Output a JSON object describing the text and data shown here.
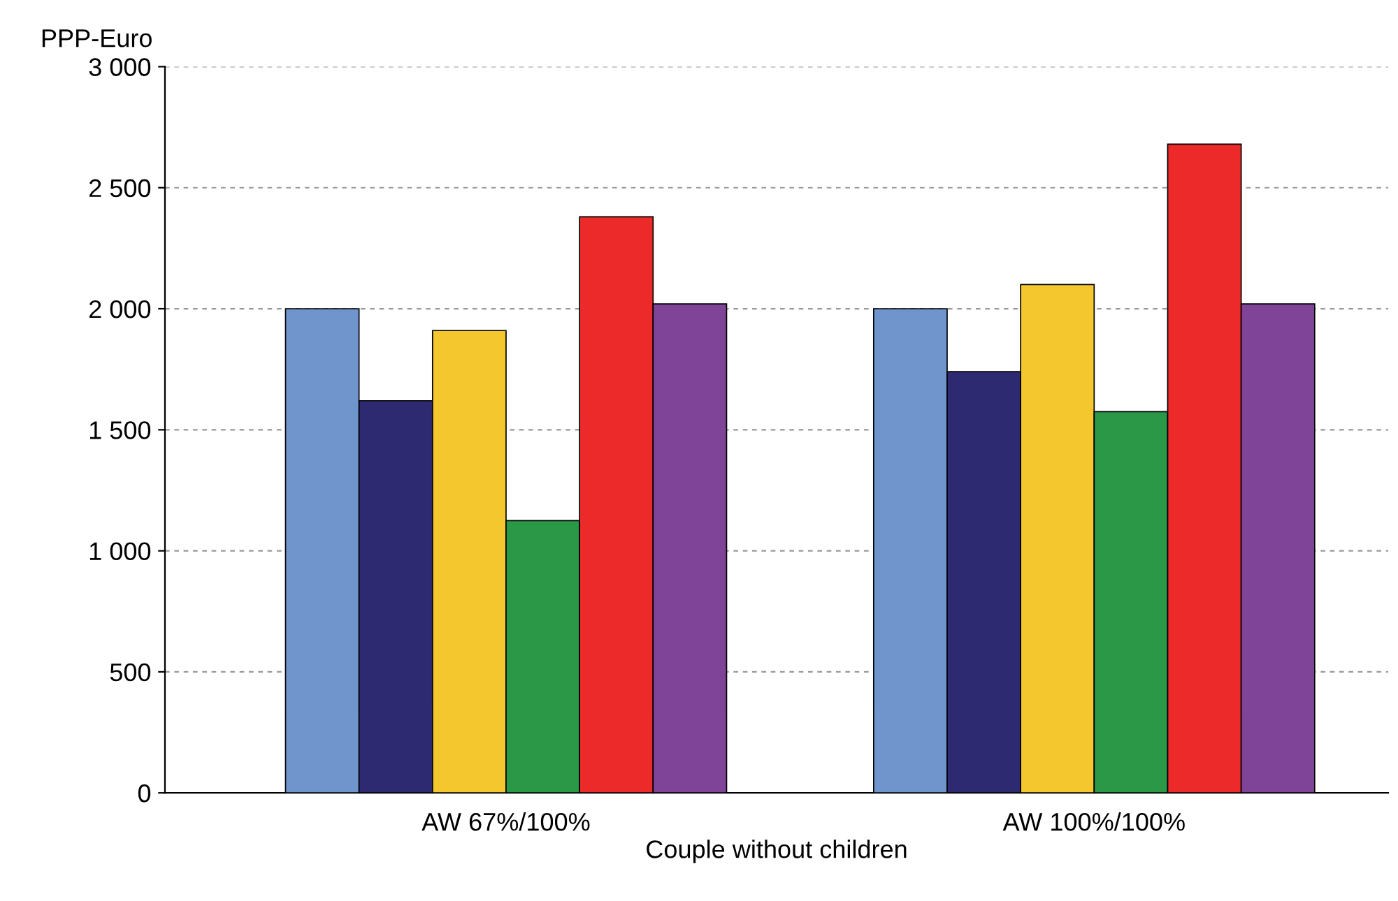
{
  "chart_data": {
    "type": "bar",
    "ylabel": "PPP-Euro",
    "xlabel": "Couple without children",
    "categories": [
      "AW 67%/100%",
      "AW 100%/100%"
    ],
    "series": [
      {
        "color": "#7094cc",
        "values": [
          2000,
          2000
        ]
      },
      {
        "color": "#2e2a72",
        "values": [
          1620,
          1740
        ]
      },
      {
        "color": "#f4c72f",
        "values": [
          1910,
          2100
        ]
      },
      {
        "color": "#2a9847",
        "values": [
          1125,
          1575
        ]
      },
      {
        "color": "#ec2a29",
        "values": [
          2380,
          2680
        ]
      },
      {
        "color": "#7f4397",
        "values": [
          2020,
          2020
        ]
      }
    ],
    "ylim": [
      0,
      3000
    ],
    "yticks": [
      0,
      500,
      {
        "value": 1000,
        "label": "1 000"
      },
      {
        "value": 1500,
        "label": "1 500"
      },
      {
        "value": 2000,
        "label": "2 000"
      },
      {
        "value": 2500,
        "label": "2 500"
      },
      {
        "value": 3000,
        "label": "3 000"
      }
    ],
    "grid": "y"
  }
}
